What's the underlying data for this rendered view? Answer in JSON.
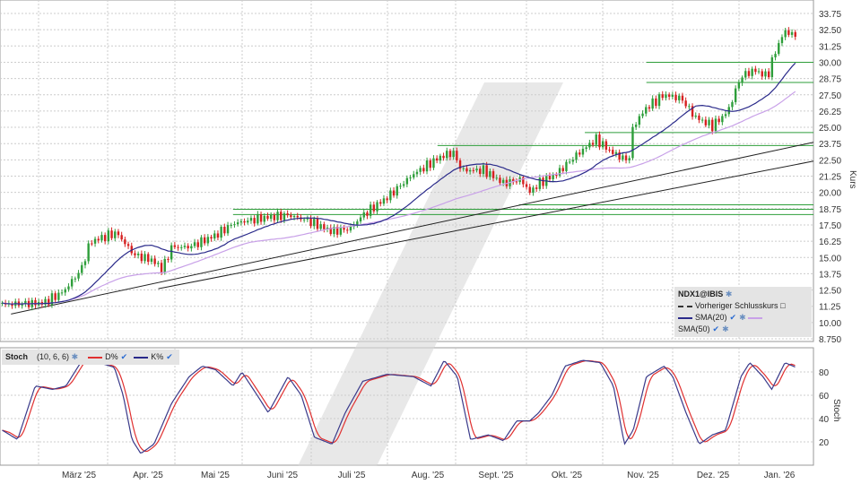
{
  "legend": {
    "symbol": "NDX1@IBIS",
    "prev_close": "Vorheriger Schlusskurs",
    "sma20": "SMA(20)",
    "sma50": "SMA(50)"
  },
  "stoch_legend": {
    "title": "Stoch",
    "params": "(10, 6, 6)",
    "d": "D%",
    "k": "K%"
  },
  "colors": {
    "up": "#2e9e3a",
    "down": "#d62020",
    "sma20": "#2a2a8a",
    "sma50": "#c8a0e8",
    "k": "#3a3a8a",
    "d": "#e03030",
    "hline": "#2e9e3a",
    "trend": "#222222"
  },
  "chart_data": [
    {
      "type": "candlestick",
      "ylabel": "Kurs",
      "ylim": [
        8.75,
        33.75
      ],
      "yticks": [
        "33.75",
        "32.50",
        "31.25",
        "30.00",
        "28.75",
        "27.50",
        "26.25",
        "25.00",
        "23.75",
        "22.50",
        "21.25",
        "20.00",
        "18.75",
        "17.50",
        "16.25",
        "15.00",
        "13.75",
        "12.50",
        "11.25",
        "10.00",
        "8.750"
      ],
      "xticks": [
        "März '25",
        "Apr. '25",
        "Mai '25",
        "Juni '25",
        "Juli '25",
        "Aug. '25",
        "Sept. '25",
        "Okt. '25",
        "Nov. '25",
        "Dez. '25",
        "Jan. '26"
      ],
      "xlim": [
        "2025-01-25",
        "2026-01-30"
      ],
      "close": [
        [
          "2025-01-26",
          11.4
        ],
        [
          "2025-02-14",
          11.5
        ],
        [
          "2025-02-23",
          12.4
        ],
        [
          "2025-03-03",
          14.1
        ],
        [
          "2025-03-07",
          16.2
        ],
        [
          "2025-03-19",
          16.9
        ],
        [
          "2025-03-27",
          15.2
        ],
        [
          "2025-04-04",
          14.8
        ],
        [
          "2025-04-09",
          14.1
        ],
        [
          "2025-04-13",
          15.8
        ],
        [
          "2025-04-21",
          15.8
        ],
        [
          "2025-05-03",
          16.7
        ],
        [
          "2025-05-11",
          17.6
        ],
        [
          "2025-05-23",
          18.0
        ],
        [
          "2025-06-05",
          18.25
        ],
        [
          "2025-06-13",
          17.9
        ],
        [
          "2025-06-25",
          17.0
        ],
        [
          "2025-07-03",
          17.2
        ],
        [
          "2025-07-09",
          18.25
        ],
        [
          "2025-07-20",
          19.6
        ],
        [
          "2025-08-01",
          21.4
        ],
        [
          "2025-08-13",
          22.7
        ],
        [
          "2025-08-19",
          23.1
        ],
        [
          "2025-08-23",
          21.7
        ],
        [
          "2025-09-02",
          21.7
        ],
        [
          "2025-09-11",
          20.7
        ],
        [
          "2025-09-19",
          21.0
        ],
        [
          "2025-09-23",
          20.0
        ],
        [
          "2025-09-27",
          20.7
        ],
        [
          "2025-10-05",
          21.4
        ],
        [
          "2025-10-13",
          22.7
        ],
        [
          "2025-10-23",
          24.1
        ],
        [
          "2025-10-30",
          23.1
        ],
        [
          "2025-11-07",
          22.4
        ],
        [
          "2025-11-09",
          25.1
        ],
        [
          "2025-11-15",
          26.5
        ],
        [
          "2025-11-23",
          27.5
        ],
        [
          "2025-12-01",
          27.2
        ],
        [
          "2025-12-07",
          25.8
        ],
        [
          "2025-12-15",
          25.1
        ],
        [
          "2025-12-22",
          26.2
        ],
        [
          "2025-12-28",
          28.9
        ],
        [
          "2026-01-03",
          29.4
        ],
        [
          "2026-01-09",
          28.9
        ],
        [
          "2026-01-13",
          31.0
        ],
        [
          "2026-01-17",
          32.4
        ],
        [
          "2026-01-22",
          32.0
        ]
      ],
      "horizontal_lines": [
        {
          "from": "2025-11-15",
          "value": 30.0
        },
        {
          "from": "2025-11-15",
          "value": 28.45
        },
        {
          "from": "2025-10-18",
          "value": 24.6
        },
        {
          "from": "2025-08-12",
          "value": 23.6
        },
        {
          "from": "2025-09-18",
          "value": 19.05
        },
        {
          "from": "2025-05-11",
          "value": 18.7
        },
        {
          "from": "2025-05-11",
          "value": 18.3
        }
      ],
      "trend_lines": [
        [
          [
            "2025-01-30",
            10.65
          ],
          [
            "2026-01-30",
            23.85
          ]
        ],
        [
          [
            "2025-04-07",
            12.6
          ],
          [
            "2026-01-30",
            22.4
          ]
        ]
      ]
    },
    {
      "type": "line",
      "ylabel": "Stoch",
      "ylim": [
        0,
        100
      ],
      "yticks": [
        "80",
        "60",
        "40",
        "20"
      ],
      "k": [
        [
          "2025-01-26",
          30
        ],
        [
          "2025-02-02",
          22
        ],
        [
          "2025-02-10",
          68
        ],
        [
          "2025-02-18",
          65
        ],
        [
          "2025-02-24",
          68
        ],
        [
          "2025-03-04",
          92
        ],
        [
          "2025-03-18",
          84
        ],
        [
          "2025-03-22",
          60
        ],
        [
          "2025-03-26",
          22
        ],
        [
          "2025-03-30",
          10
        ],
        [
          "2025-04-05",
          18
        ],
        [
          "2025-04-13",
          53
        ],
        [
          "2025-04-21",
          76
        ],
        [
          "2025-04-27",
          85
        ],
        [
          "2025-05-03",
          82
        ],
        [
          "2025-05-11",
          68
        ],
        [
          "2025-05-15",
          80
        ],
        [
          "2025-05-23",
          57
        ],
        [
          "2025-05-27",
          45
        ],
        [
          "2025-06-05",
          76
        ],
        [
          "2025-06-11",
          60
        ],
        [
          "2025-06-17",
          24
        ],
        [
          "2025-06-25",
          18
        ],
        [
          "2025-07-01",
          45
        ],
        [
          "2025-07-09",
          72
        ],
        [
          "2025-07-20",
          78
        ],
        [
          "2025-08-01",
          76
        ],
        [
          "2025-08-09",
          68
        ],
        [
          "2025-08-15",
          90
        ],
        [
          "2025-08-21",
          76
        ],
        [
          "2025-08-27",
          22
        ],
        [
          "2025-09-04",
          26
        ],
        [
          "2025-09-11",
          21
        ],
        [
          "2025-09-17",
          38
        ],
        [
          "2025-09-23",
          38
        ],
        [
          "2025-09-27",
          45
        ],
        [
          "2025-10-03",
          60
        ],
        [
          "2025-10-09",
          85
        ],
        [
          "2025-10-17",
          90
        ],
        [
          "2025-10-25",
          88
        ],
        [
          "2025-10-31",
          68
        ],
        [
          "2025-11-05",
          18
        ],
        [
          "2025-11-09",
          30
        ],
        [
          "2025-11-15",
          76
        ],
        [
          "2025-11-23",
          85
        ],
        [
          "2025-11-27",
          76
        ],
        [
          "2025-12-03",
          45
        ],
        [
          "2025-12-09",
          18
        ],
        [
          "2025-12-15",
          26
        ],
        [
          "2025-12-21",
          30
        ],
        [
          "2025-12-28",
          76
        ],
        [
          "2026-01-01",
          88
        ],
        [
          "2026-01-07",
          76
        ],
        [
          "2026-01-11",
          65
        ],
        [
          "2026-01-17",
          88
        ],
        [
          "2026-01-22",
          84
        ]
      ]
    }
  ]
}
